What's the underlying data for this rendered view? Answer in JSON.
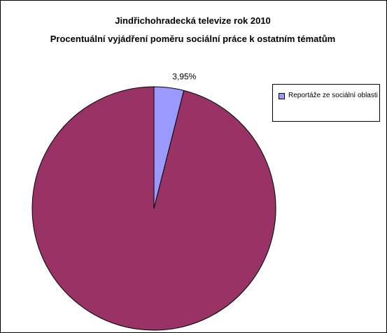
{
  "chart_data": {
    "type": "pie",
    "title": "Jindřichohradecká televize rok 2010",
    "subtitle": "Procentuální vyjádření poměru sociální práce k ostatním tématům",
    "slices": [
      {
        "label": "Reportáže ze sociální oblasti",
        "value": 3.95,
        "data_label": "3,95%",
        "color": "#9999FF",
        "in_legend": true
      },
      {
        "label": "",
        "value": 96.05,
        "data_label": "",
        "color": "#993366",
        "in_legend": false
      }
    ],
    "legend": {
      "position": "right",
      "items": [
        "Reportáže ze sociální oblasti"
      ]
    },
    "start_angle": "12 o'clock",
    "direction": "clockwise"
  }
}
